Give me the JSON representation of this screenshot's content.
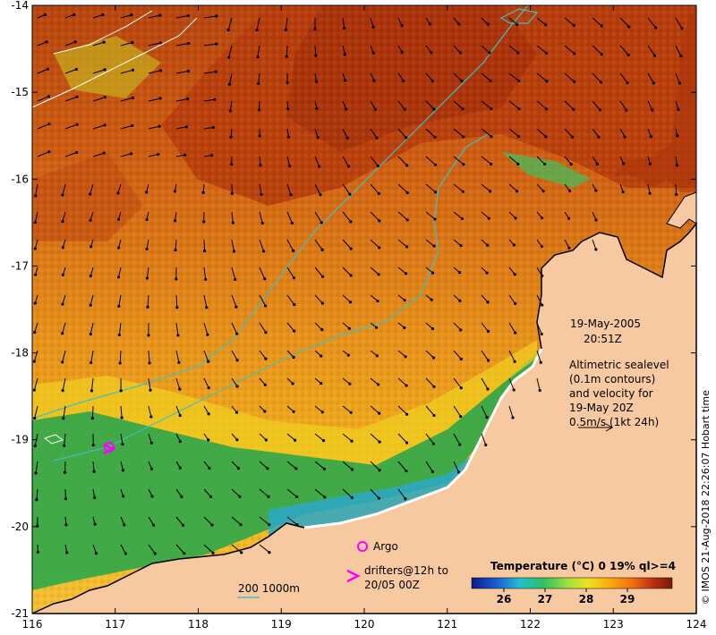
{
  "map": {
    "x_ticks": [
      "116",
      "117",
      "118",
      "119",
      "120",
      "121",
      "122",
      "123",
      "124"
    ],
    "y_ticks": [
      "-14",
      "-15",
      "-16",
      "-17",
      "-18",
      "-19",
      "-20",
      "-21"
    ],
    "colors": {
      "land": "#f7c9a0",
      "coast": "#000000",
      "sea_warm": "#c04a10",
      "sea_mid": "#e88a1a",
      "sea_cool": "#f3b21a",
      "shelf_green": "#2ea84a",
      "shelf_cyan": "#2aa8c8",
      "contour_cyan": "#40c0c0",
      "argo": "#ff00ff",
      "drifter": "#ff00ff"
    }
  },
  "annotation": {
    "date": "19-May-2005",
    "time": "20:51Z",
    "altimetry_line1": "Altimetric sealevel",
    "altimetry_line2": "(0.1m contours)",
    "altimetry_line3": "and velocity for",
    "altimetry_line4": "19-May 20Z",
    "scale_label": "0.5m/s (1kt 24h)"
  },
  "legend": {
    "argo_label": "Argo",
    "drifters_line1": "drifters@12h to",
    "drifters_line2": "20/05 00Z",
    "isobath_label": "200  1000m"
  },
  "colorbar": {
    "title": "Temperature (°C) 0 19% ql>=4",
    "ticks": [
      "26",
      "27",
      "28",
      "29"
    ],
    "stops": [
      "#0a1a8a",
      "#1a5ad0",
      "#20c0d0",
      "#30c060",
      "#a0e040",
      "#f0e020",
      "#f8b010",
      "#f07010",
      "#c03010",
      "#7a1a08"
    ]
  },
  "credit": "© IMOS 21-Aug-2018 22:26:07 Hobart time"
}
